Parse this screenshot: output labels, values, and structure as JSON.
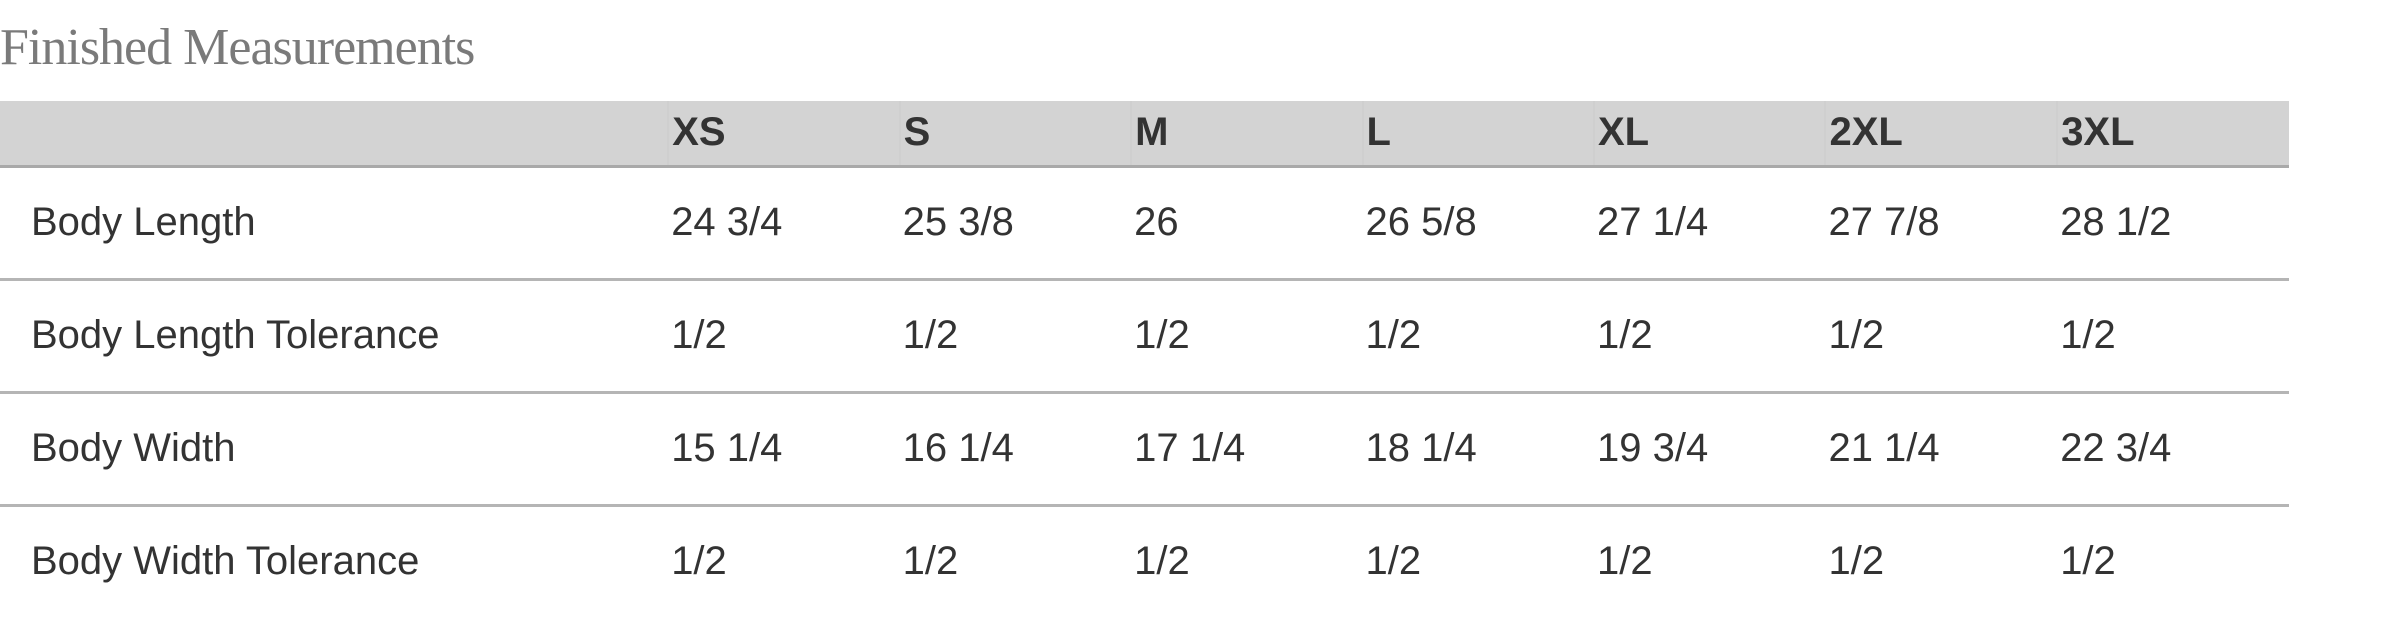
{
  "title": "Finished Measurements",
  "table": {
    "columns": [
      "",
      "XS",
      "S",
      "M",
      "L",
      "XL",
      "2XL",
      "3XL"
    ],
    "rows": [
      {
        "label": "Body Length",
        "values": [
          "24 3/4",
          "25 3/8",
          "26",
          "26 5/8",
          "27 1/4",
          "27 7/8",
          "28 1/2"
        ]
      },
      {
        "label": "Body Length Tolerance",
        "values": [
          "1/2",
          "1/2",
          "1/2",
          "1/2",
          "1/2",
          "1/2",
          "1/2"
        ]
      },
      {
        "label": "Body Width",
        "values": [
          "15 1/4",
          "16 1/4",
          "17 1/4",
          "18 1/4",
          "19 3/4",
          "21 1/4",
          "22 3/4"
        ]
      },
      {
        "label": "Body Width Tolerance",
        "values": [
          "1/2",
          "1/2",
          "1/2",
          "1/2",
          "1/2",
          "1/2",
          "1/2"
        ]
      }
    ]
  },
  "colors": {
    "header_bg": "#d3d3d3",
    "title": "#7a7a7a",
    "text": "#333333",
    "divider": "#b5b5b5"
  }
}
